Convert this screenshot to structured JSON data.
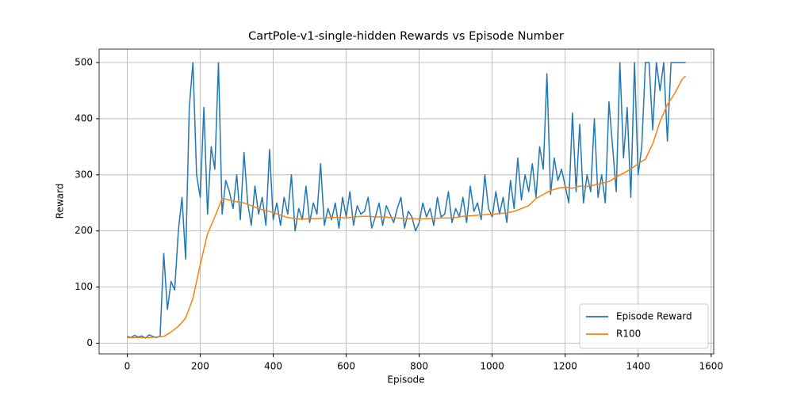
{
  "chart_data": {
    "type": "line",
    "title": "CartPole-v1-single-hidden Rewards vs Episode Number",
    "x_label": "Episode",
    "y_label": "Reward",
    "xlim": [
      -77,
      1607
    ],
    "ylim": [
      -19,
      524
    ],
    "xticks": [
      0,
      200,
      400,
      600,
      800,
      1000,
      1200,
      1400,
      1600
    ],
    "yticks": [
      0,
      100,
      200,
      300,
      400,
      500
    ],
    "grid": true,
    "legend": "lower right",
    "series": [
      {
        "name": "Episode Reward",
        "color": "#1f77b4",
        "x": [
          0,
          10,
          20,
          30,
          40,
          50,
          60,
          70,
          80,
          90,
          100,
          110,
          120,
          130,
          140,
          150,
          160,
          170,
          180,
          190,
          200,
          210,
          220,
          230,
          240,
          250,
          260,
          270,
          280,
          290,
          300,
          310,
          320,
          330,
          340,
          350,
          360,
          370,
          380,
          390,
          400,
          410,
          420,
          430,
          440,
          450,
          460,
          470,
          480,
          490,
          500,
          510,
          520,
          530,
          540,
          550,
          560,
          570,
          580,
          590,
          600,
          610,
          620,
          630,
          640,
          650,
          660,
          670,
          680,
          690,
          700,
          710,
          720,
          730,
          740,
          750,
          760,
          770,
          780,
          790,
          800,
          810,
          820,
          830,
          840,
          850,
          860,
          870,
          880,
          890,
          900,
          910,
          920,
          930,
          940,
          950,
          960,
          970,
          980,
          990,
          1000,
          1010,
          1020,
          1030,
          1040,
          1050,
          1060,
          1070,
          1080,
          1090,
          1100,
          1110,
          1120,
          1130,
          1140,
          1150,
          1160,
          1170,
          1180,
          1190,
          1200,
          1210,
          1220,
          1230,
          1240,
          1250,
          1260,
          1270,
          1280,
          1290,
          1300,
          1310,
          1320,
          1330,
          1340,
          1350,
          1360,
          1370,
          1380,
          1390,
          1400,
          1410,
          1420,
          1430,
          1440,
          1450,
          1460,
          1470,
          1480,
          1490,
          1500,
          1510,
          1520,
          1530
        ],
        "values": [
          12,
          10,
          14,
          11,
          13,
          9,
          15,
          12,
          10,
          13,
          160,
          60,
          110,
          95,
          200,
          260,
          150,
          420,
          500,
          300,
          260,
          420,
          230,
          350,
          310,
          500,
          230,
          290,
          270,
          240,
          300,
          220,
          340,
          250,
          210,
          280,
          230,
          260,
          210,
          345,
          220,
          250,
          210,
          260,
          230,
          300,
          200,
          240,
          220,
          280,
          215,
          250,
          230,
          320,
          210,
          240,
          220,
          250,
          205,
          260,
          225,
          270,
          210,
          245,
          230,
          235,
          260,
          205,
          225,
          250,
          210,
          245,
          230,
          215,
          240,
          260,
          205,
          235,
          225,
          200,
          215,
          250,
          225,
          240,
          210,
          260,
          225,
          230,
          270,
          215,
          240,
          225,
          260,
          215,
          280,
          235,
          250,
          220,
          300,
          240,
          225,
          270,
          230,
          260,
          215,
          290,
          240,
          330,
          255,
          300,
          270,
          320,
          260,
          350,
          310,
          480,
          265,
          330,
          290,
          310,
          280,
          250,
          410,
          270,
          390,
          250,
          300,
          270,
          400,
          260,
          300,
          250,
          430,
          350,
          270,
          500,
          330,
          420,
          260,
          500,
          300,
          350,
          500,
          500,
          380,
          500,
          450,
          500,
          360,
          500,
          500,
          500,
          500,
          500
        ]
      },
      {
        "name": "R100",
        "color": "#ff7f0e",
        "x": [
          0,
          20,
          40,
          60,
          80,
          100,
          120,
          140,
          160,
          180,
          200,
          220,
          240,
          260,
          280,
          300,
          320,
          340,
          360,
          380,
          400,
          420,
          440,
          460,
          480,
          500,
          520,
          540,
          560,
          580,
          600,
          620,
          640,
          660,
          680,
          700,
          720,
          740,
          760,
          780,
          800,
          820,
          840,
          860,
          880,
          900,
          920,
          940,
          960,
          980,
          1000,
          1020,
          1040,
          1060,
          1080,
          1100,
          1120,
          1140,
          1160,
          1180,
          1200,
          1220,
          1240,
          1260,
          1280,
          1300,
          1320,
          1340,
          1360,
          1380,
          1400,
          1420,
          1440,
          1460,
          1480,
          1500,
          1520,
          1530
        ],
        "values": [
          10,
          10,
          10,
          10,
          11,
          12,
          20,
          30,
          45,
          80,
          140,
          195,
          225,
          258,
          255,
          252,
          250,
          245,
          240,
          236,
          233,
          228,
          224,
          222,
          221,
          222,
          222,
          223,
          224,
          224,
          223,
          225,
          226,
          226,
          225,
          225,
          224,
          223,
          222,
          222,
          221,
          222,
          222,
          223,
          223,
          224,
          226,
          227,
          228,
          229,
          230,
          231,
          232,
          235,
          240,
          245,
          258,
          265,
          272,
          276,
          278,
          276,
          280,
          279,
          282,
          285,
          288,
          296,
          303,
          310,
          320,
          328,
          355,
          395,
          425,
          445,
          470,
          476
        ]
      }
    ]
  }
}
